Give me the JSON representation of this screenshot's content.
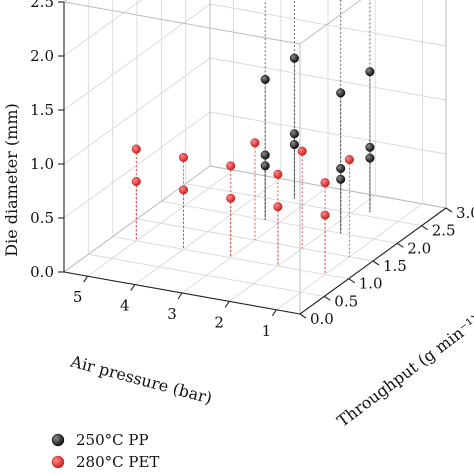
{
  "chart_data": {
    "type": "scatter3d",
    "x_axis": {
      "label": "Air pressure (bar)",
      "range": [
        0.5,
        5.5
      ],
      "ticks": [
        "1",
        "2",
        "3",
        "4",
        "5"
      ]
    },
    "y_axis": {
      "label": "Throughput (g min⁻¹)",
      "range": [
        0,
        3
      ],
      "ticks": [
        "0.0",
        "0.5",
        "1.0",
        "1.5",
        "2.0",
        "2.5",
        "3.0"
      ]
    },
    "z_axis": {
      "label": "Die diameter (mm)",
      "range": [
        0,
        2.5
      ],
      "ticks": [
        "0.0",
        "0.5",
        "1.0",
        "1.5",
        "2.0",
        "2.5"
      ]
    },
    "grid": true,
    "legend_position": "bottom-left",
    "series": [
      {
        "name": "250°C PP",
        "color": "#111111",
        "points": [
          {
            "x": 1.7,
            "y": 2.0,
            "z": 2.2
          },
          {
            "x": 3.3,
            "y": 2.0,
            "z": 2.2
          },
          {
            "x": 1.7,
            "y": 2.6,
            "z": 2.2
          },
          {
            "x": 3.3,
            "y": 2.6,
            "z": 2.2
          },
          {
            "x": 1.7,
            "y": 2.0,
            "z": 1.3
          },
          {
            "x": 3.3,
            "y": 2.0,
            "z": 1.3
          },
          {
            "x": 1.7,
            "y": 2.6,
            "z": 1.3
          },
          {
            "x": 3.3,
            "y": 2.6,
            "z": 1.3
          },
          {
            "x": 1.7,
            "y": 2.0,
            "z": 0.6
          },
          {
            "x": 3.3,
            "y": 2.0,
            "z": 0.6
          },
          {
            "x": 1.7,
            "y": 2.6,
            "z": 0.6
          },
          {
            "x": 3.3,
            "y": 2.6,
            "z": 0.6
          },
          {
            "x": 1.7,
            "y": 2.0,
            "z": 0.5
          },
          {
            "x": 3.3,
            "y": 2.0,
            "z": 0.5
          },
          {
            "x": 1.7,
            "y": 2.6,
            "z": 0.5
          },
          {
            "x": 3.3,
            "y": 2.6,
            "z": 0.5
          }
        ]
      },
      {
        "name": "280°C PET",
        "color": "#cc2222",
        "points": [
          {
            "x": 1.0,
            "y": 1.0,
            "z": 0.85
          },
          {
            "x": 2.0,
            "y": 1.0,
            "z": 0.85
          },
          {
            "x": 3.0,
            "y": 1.0,
            "z": 0.85
          },
          {
            "x": 4.0,
            "y": 1.0,
            "z": 0.85
          },
          {
            "x": 5.0,
            "y": 1.0,
            "z": 0.85
          },
          {
            "x": 1.0,
            "y": 1.0,
            "z": 0.55
          },
          {
            "x": 2.0,
            "y": 1.0,
            "z": 0.55
          },
          {
            "x": 3.0,
            "y": 1.0,
            "z": 0.55
          },
          {
            "x": 4.0,
            "y": 1.0,
            "z": 0.55
          },
          {
            "x": 5.0,
            "y": 1.0,
            "z": 0.55
          },
          {
            "x": 1.0,
            "y": 1.5,
            "z": 0.9
          },
          {
            "x": 2.0,
            "y": 1.5,
            "z": 0.9
          },
          {
            "x": 3.0,
            "y": 1.5,
            "z": 0.9
          }
        ]
      }
    ]
  }
}
